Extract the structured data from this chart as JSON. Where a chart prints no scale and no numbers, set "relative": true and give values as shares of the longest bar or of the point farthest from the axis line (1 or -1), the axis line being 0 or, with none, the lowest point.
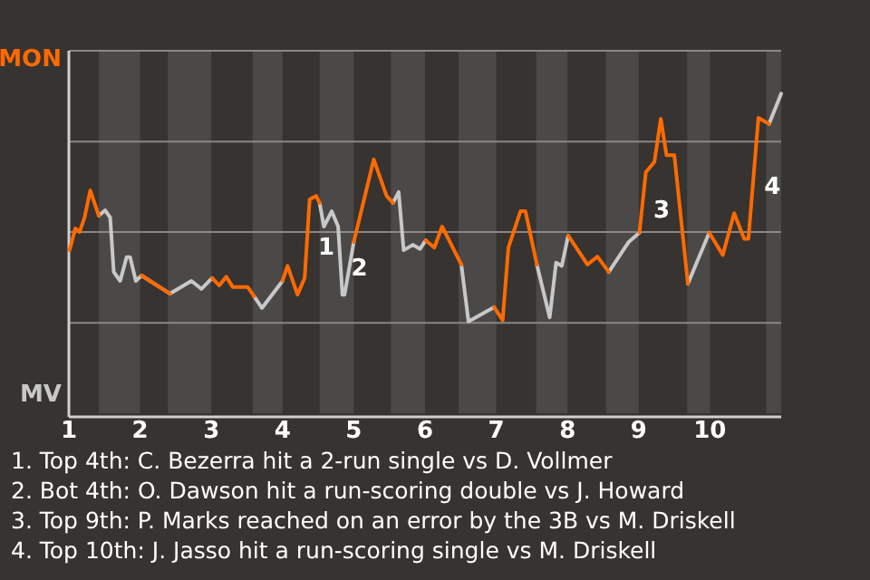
{
  "chart_data": {
    "type": "line",
    "relative": true,
    "x": [
      1.01,
      1.09,
      1.15,
      1.22,
      1.3,
      1.42,
      1.51,
      1.58,
      1.63,
      1.72,
      1.81,
      1.86,
      1.94,
      2.02,
      2.42,
      2.72,
      2.86,
      3.01,
      3.11,
      3.21,
      3.3,
      3.51,
      3.6,
      3.71,
      4,
      4.07,
      4.21,
      4.31,
      4.38,
      4.47,
      4.52,
      4.58,
      4.69,
      4.78,
      4.84,
      4.87,
      5,
      5.28,
      5.46,
      5.55,
      5.63,
      5.7,
      5.83,
      5.93,
      6.01,
      6.13,
      6.24,
      6.51,
      6.61,
      6.97,
      7.09,
      7.17,
      7.34,
      7.41,
      7.57,
      7.75,
      7.84,
      7.92,
      8.01,
      8.28,
      8.42,
      8.58,
      8.86,
      9.01,
      9.1,
      9.22,
      9.31,
      9.39,
      9.5,
      9.69,
      9.83,
      9.99,
      10.18,
      10.34,
      10.48,
      10.54,
      10.68,
      10.83,
      11
    ],
    "series": [
      {
        "color": "#ff6a00",
        "values": [
          0.51,
          0.578,
          0.567,
          0.612,
          0.697,
          0.618,
          null,
          null,
          null,
          null,
          null,
          null,
          null,
          0.431,
          0.374,
          null,
          null,
          0.423,
          0.4,
          0.427,
          0.395,
          0.395,
          0.366,
          null,
          0.414,
          0.461,
          0.371,
          0.423,
          0.669,
          0.68,
          0.658,
          null,
          null,
          null,
          null,
          null,
          0.536,
          0.794,
          0.68,
          0.658,
          null,
          null,
          null,
          null,
          0.541,
          0.518,
          0.584,
          0.465,
          null,
          0.332,
          0.291,
          0.518,
          0.632,
          0.632,
          0.465,
          null,
          null,
          null,
          0.556,
          0.465,
          0.49,
          0.442,
          null,
          0.565,
          0.754,
          0.786,
          0.921,
          0.807,
          0.807,
          0.405,
          null,
          0.565,
          0.495,
          0.626,
          0.546,
          0.546,
          0.924,
          0.905,
          null
        ]
      },
      {
        "color": "#c8c8c8",
        "values": [
          null,
          null,
          null,
          null,
          null,
          0.618,
          0.635,
          0.612,
          0.442,
          0.414,
          0.488,
          0.488,
          0.414,
          0.431,
          0.374,
          0.414,
          0.389,
          0.423,
          null,
          null,
          null,
          null,
          0.366,
          0.329,
          0.414,
          null,
          null,
          null,
          null,
          null,
          0.658,
          0.584,
          0.632,
          0.584,
          0.371,
          0.371,
          0.536,
          null,
          null,
          0.658,
          0.692,
          0.51,
          0.527,
          0.514,
          0.541,
          null,
          null,
          0.465,
          0.287,
          0.332,
          null,
          null,
          null,
          null,
          0.465,
          0.3,
          0.471,
          0.461,
          0.556,
          null,
          null,
          0.442,
          0.536,
          0.565,
          null,
          null,
          null,
          null,
          null,
          0.405,
          0.48,
          0.565,
          null,
          null,
          null,
          null,
          null,
          0.905,
          1
        ]
      }
    ],
    "xlim": [
      1,
      11
    ],
    "xticks": [
      1,
      2,
      3,
      4,
      5,
      6,
      7,
      8,
      9,
      10
    ],
    "marker": "none",
    "line_style": "solid",
    "ref_lines": [
      {
        "axis": "y",
        "value": 0.283,
        "color": "#8a8784"
      },
      {
        "axis": "y",
        "value": 0.567,
        "color": "#8a8784"
      },
      {
        "axis": "y",
        "value": 0.85,
        "color": "#8a8784"
      }
    ],
    "bands": [
      {
        "axis": "x",
        "from": 1.42,
        "to": 2,
        "color": "#4b4947"
      },
      {
        "axis": "x",
        "from": 2.39,
        "to": 3,
        "color": "#4b4947"
      },
      {
        "axis": "x",
        "from": 3.58,
        "to": 4,
        "color": "#4b4947"
      },
      {
        "axis": "x",
        "from": 4.52,
        "to": 5,
        "color": "#4b4947"
      },
      {
        "axis": "x",
        "from": 5.52,
        "to": 6,
        "color": "#4b4947"
      },
      {
        "axis": "x",
        "from": 6.47,
        "to": 7,
        "color": "#4b4947"
      },
      {
        "axis": "x",
        "from": 7.56,
        "to": 8,
        "color": "#4b4947"
      },
      {
        "axis": "x",
        "from": 8.54,
        "to": 9,
        "color": "#4b4947"
      },
      {
        "axis": "x",
        "from": 9.68,
        "to": 10,
        "color": "#4b4947"
      },
      {
        "axis": "x",
        "from": 10.79,
        "to": 11,
        "color": "#4b4947"
      }
    ],
    "annotations": [
      "MON",
      "MV",
      {
        "text": "1",
        "x": 4.345,
        "y": 0.546
      },
      {
        "text": "2",
        "x": 4.81,
        "y": 0.478
      },
      {
        "text": "3",
        "x": 9.055,
        "y": 0.66
      },
      {
        "text": "4",
        "x": 10.61,
        "y": 0.735
      },
      "1. Top 4th: C. Bezerra hit a 2-run single vs D. Vollmer",
      "2. Bot 4th: O. Dawson hit a run-scoring double vs J. Howard",
      "3. Top 9th: P. Marks reached on an error by the 3B vs M. Driskell",
      "4. Top 10th: J. Jasso hit a run-scoring single vs M. Driskell"
    ]
  }
}
